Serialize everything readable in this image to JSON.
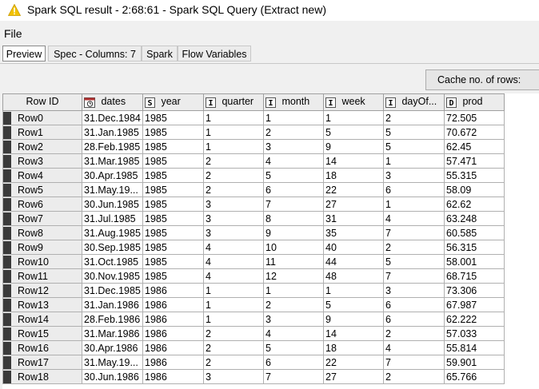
{
  "window": {
    "title": "Spark SQL result - 2:68:61 - Spark SQL Query (Extract new)"
  },
  "menu": {
    "file": "File"
  },
  "tabs": [
    {
      "label": "Preview",
      "active": true
    },
    {
      "label": "Spec - Columns: 7",
      "active": false
    },
    {
      "label": "Spark",
      "active": false
    },
    {
      "label": "Flow Variables",
      "active": false
    }
  ],
  "toolbar": {
    "cache_label": "Cache no. of rows:"
  },
  "table": {
    "columns": [
      {
        "label": "Row ID",
        "type": ""
      },
      {
        "label": "dates",
        "type": "calendar-icon"
      },
      {
        "label": "year",
        "type": "S"
      },
      {
        "label": "quarter",
        "type": "I"
      },
      {
        "label": "month",
        "type": "I"
      },
      {
        "label": "week",
        "type": "I"
      },
      {
        "label": "dayOf...",
        "type": "I"
      },
      {
        "label": "prod",
        "type": "D"
      }
    ],
    "rows": [
      [
        "Row0",
        "31.Dec.1984",
        "1985",
        "1",
        "1",
        "1",
        "2",
        "72.505"
      ],
      [
        "Row1",
        "31.Jan.1985",
        "1985",
        "1",
        "2",
        "5",
        "5",
        "70.672"
      ],
      [
        "Row2",
        "28.Feb.1985",
        "1985",
        "1",
        "3",
        "9",
        "5",
        "62.45"
      ],
      [
        "Row3",
        "31.Mar.1985",
        "1985",
        "2",
        "4",
        "14",
        "1",
        "57.471"
      ],
      [
        "Row4",
        "30.Apr.1985",
        "1985",
        "2",
        "5",
        "18",
        "3",
        "55.315"
      ],
      [
        "Row5",
        "31.May.19...",
        "1985",
        "2",
        "6",
        "22",
        "6",
        "58.09"
      ],
      [
        "Row6",
        "30.Jun.1985",
        "1985",
        "3",
        "7",
        "27",
        "1",
        "62.62"
      ],
      [
        "Row7",
        "31.Jul.1985",
        "1985",
        "3",
        "8",
        "31",
        "4",
        "63.248"
      ],
      [
        "Row8",
        "31.Aug.1985",
        "1985",
        "3",
        "9",
        "35",
        "7",
        "60.585"
      ],
      [
        "Row9",
        "30.Sep.1985",
        "1985",
        "4",
        "10",
        "40",
        "2",
        "56.315"
      ],
      [
        "Row10",
        "31.Oct.1985",
        "1985",
        "4",
        "11",
        "44",
        "5",
        "58.001"
      ],
      [
        "Row11",
        "30.Nov.1985",
        "1985",
        "4",
        "12",
        "48",
        "7",
        "68.715"
      ],
      [
        "Row12",
        "31.Dec.1985",
        "1986",
        "1",
        "1",
        "1",
        "3",
        "73.306"
      ],
      [
        "Row13",
        "31.Jan.1986",
        "1986",
        "1",
        "2",
        "5",
        "6",
        "67.987"
      ],
      [
        "Row14",
        "28.Feb.1986",
        "1986",
        "1",
        "3",
        "9",
        "6",
        "62.222"
      ],
      [
        "Row15",
        "31.Mar.1986",
        "1986",
        "2",
        "4",
        "14",
        "2",
        "57.033"
      ],
      [
        "Row16",
        "30.Apr.1986",
        "1986",
        "2",
        "5",
        "18",
        "4",
        "55.814"
      ],
      [
        "Row17",
        "31.May.19...",
        "1986",
        "2",
        "6",
        "22",
        "7",
        "59.901"
      ],
      [
        "Row18",
        "30.Jun.1986",
        "1986",
        "3",
        "7",
        "27",
        "2",
        "65.766"
      ]
    ]
  }
}
